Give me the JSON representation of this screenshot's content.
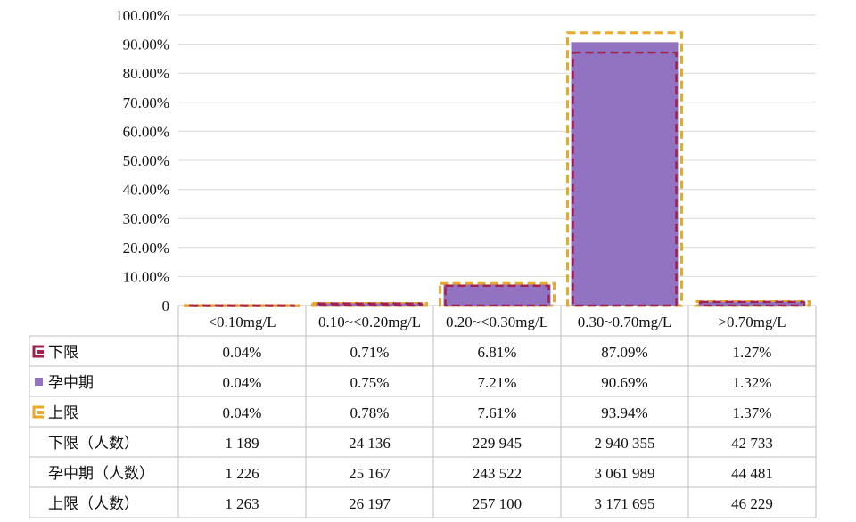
{
  "chart_data": {
    "type": "bar",
    "title": "",
    "xlabel": "",
    "ylabel": "",
    "ylim": [
      0,
      1.0
    ],
    "yticks": [
      "0",
      "10.00%",
      "20.00%",
      "30.00%",
      "40.00%",
      "50.00%",
      "60.00%",
      "70.00%",
      "80.00%",
      "90.00%",
      "100.00%"
    ],
    "grid": true,
    "categories": [
      "<0.10mg/L",
      "0.10~<0.20mg/L",
      "0.20~<0.30mg/L",
      "0.30~0.70mg/L",
      ">0.70mg/L"
    ],
    "series": [
      {
        "name": "下限",
        "style": "dashed-outline",
        "color": "#a3214e",
        "values": [
          0.0004,
          0.0071,
          0.0681,
          0.8709,
          0.0127
        ],
        "labels": [
          "0.04%",
          "0.71%",
          "6.81%",
          "87.09%",
          "1.27%"
        ]
      },
      {
        "name": "孕中期",
        "style": "filled-bar",
        "color": "#9173c1",
        "values": [
          0.0004,
          0.0075,
          0.0721,
          0.9069,
          0.0132
        ],
        "labels": [
          "0.04%",
          "0.75%",
          "7.21%",
          "90.69%",
          "1.32%"
        ]
      },
      {
        "name": "上限",
        "style": "dashed-outline",
        "color": "#e8a92a",
        "values": [
          0.0004,
          0.0078,
          0.0761,
          0.9394,
          0.0137
        ],
        "labels": [
          "0.04%",
          "0.78%",
          "7.61%",
          "93.94%",
          "1.37%"
        ]
      }
    ],
    "count_rows": [
      {
        "name": "下限（人数）",
        "values": [
          "1 189",
          "24 136",
          "229 945",
          "2 940 355",
          "42 733"
        ]
      },
      {
        "name": "孕中期（人数）",
        "values": [
          "1 226",
          "25 167",
          "243 522",
          "3 061 989",
          "44 481"
        ]
      },
      {
        "name": "上限（人数）",
        "values": [
          "1 263",
          "26 197",
          "257 100",
          "3 171 695",
          "46 229"
        ]
      }
    ]
  }
}
